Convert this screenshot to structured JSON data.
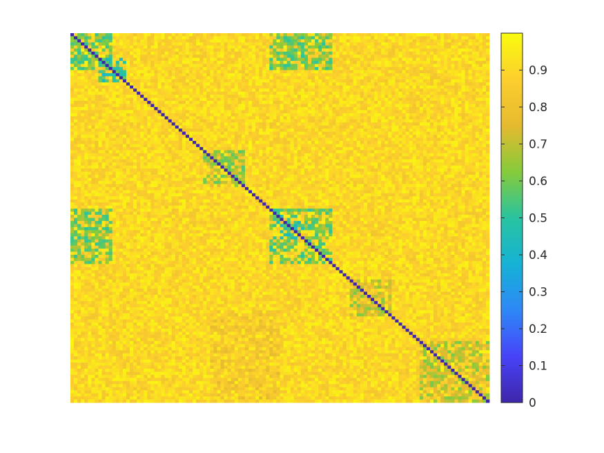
{
  "chart_data": {
    "type": "heatmap",
    "title": "",
    "xlabel": "",
    "ylabel": "",
    "n": 120,
    "diagonal_value": 0,
    "value_range": [
      0,
      1
    ],
    "axes_ticks_visible": false,
    "colormap": "parula",
    "colormap_stops": [
      "#3e26a8",
      "#4743f8",
      "#2e87f7",
      "#16b2d6",
      "#28c3a0",
      "#85cb3b",
      "#e5ba2f",
      "#fcce2e",
      "#f9fb0e"
    ],
    "low_similarity_blocks": [
      {
        "rows": [
          0,
          12
        ],
        "cols": [
          0,
          12
        ],
        "value": 0.5
      },
      {
        "rows": [
          8,
          16
        ],
        "cols": [
          8,
          16
        ],
        "value": 0.4
      },
      {
        "rows": [
          57,
          75
        ],
        "cols": [
          57,
          75
        ],
        "value": 0.5
      },
      {
        "rows": [
          59,
          67
        ],
        "cols": [
          59,
          67
        ],
        "value": 0.4
      },
      {
        "rows": [
          0,
          12
        ],
        "cols": [
          57,
          75
        ],
        "value": 0.5
      },
      {
        "rows": [
          57,
          75
        ],
        "cols": [
          0,
          12
        ],
        "value": 0.5
      },
      {
        "rows": [
          38,
          50
        ],
        "cols": [
          38,
          50
        ],
        "value": 0.55
      },
      {
        "rows": [
          80,
          92
        ],
        "cols": [
          80,
          92
        ],
        "value": 0.6
      },
      {
        "rows": [
          100,
          120
        ],
        "cols": [
          100,
          120
        ],
        "value": 0.6
      },
      {
        "rows": [
          90,
          120
        ],
        "cols": [
          40,
          60
        ],
        "value": 0.75
      }
    ],
    "colorbar": {
      "ticks": [
        0,
        0.1,
        0.2,
        0.3,
        0.4,
        0.5,
        0.6,
        0.7,
        0.8,
        0.9
      ],
      "tick_labels": [
        "0",
        "0.1",
        "0.2",
        "0.3",
        "0.4",
        "0.5",
        "0.6",
        "0.7",
        "0.8",
        "0.9"
      ],
      "range": [
        0,
        1
      ]
    }
  }
}
